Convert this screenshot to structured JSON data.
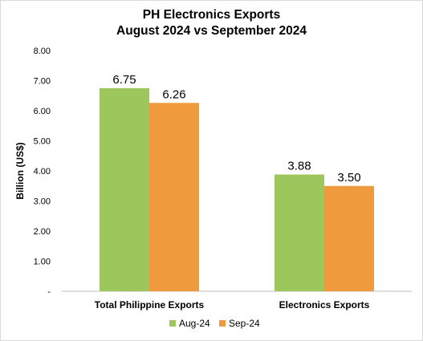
{
  "chart_data": {
    "type": "bar",
    "title": "PH Electronics Exports",
    "subtitle": "August 2024 vs September 2024",
    "ylabel": "Billion (US$)",
    "xlabel": "",
    "ylim": [
      0,
      8
    ],
    "yticks": [
      "-",
      "1.00",
      "2.00",
      "3.00",
      "4.00",
      "5.00",
      "6.00",
      "7.00",
      "8.00"
    ],
    "categories": [
      "Total Philippine Exports",
      "Electronics Exports"
    ],
    "series": [
      {
        "name": "Aug-24",
        "color": "#9dc75d",
        "values": [
          6.75,
          3.88
        ],
        "labels": [
          "6.75",
          "3.88"
        ]
      },
      {
        "name": "Sep-24",
        "color": "#f09a3e",
        "values": [
          6.26,
          3.5
        ],
        "labels": [
          "6.26",
          "3.50"
        ]
      }
    ],
    "legend": "bottom",
    "grid": false
  }
}
